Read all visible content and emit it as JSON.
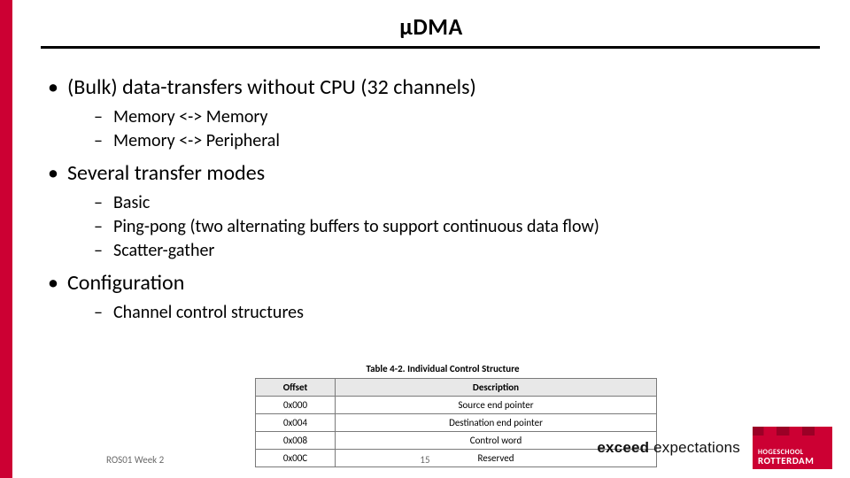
{
  "title": "µDMA",
  "bullets": [
    {
      "text": "(Bulk) data-transfers without CPU (32 channels)",
      "sub": [
        "Memory <-> Memory",
        "Memory <-> Peripheral"
      ]
    },
    {
      "text": "Several transfer modes",
      "sub": [
        "Basic",
        "Ping-pong (two alternating buffers to support continuous data flow)",
        "Scatter-gather"
      ]
    },
    {
      "text": "Configuration",
      "sub": [
        "Channel control structures"
      ]
    }
  ],
  "table": {
    "caption": "Table 4-2. Individual Control Structure",
    "columns": [
      "Offset",
      "Description"
    ],
    "rows": [
      [
        "0x000",
        "Source end pointer"
      ],
      [
        "0x004",
        "Destination end pointer"
      ],
      [
        "0x008",
        "Control word"
      ],
      [
        "0x00C",
        "Reserved"
      ]
    ],
    "header_bg": "#e8e8e8",
    "border_color": "#7a7a7a"
  },
  "footer": {
    "left": "ROS01 Week 2",
    "page": "15",
    "tagline_bold": "exceed",
    "tagline_light": " expectations",
    "logo_line1": "HOGESCHOOL",
    "logo_line2": "ROTTERDAM"
  },
  "colors": {
    "accent": "#cc0033",
    "text": "#000000",
    "muted": "#6a6a6a"
  }
}
